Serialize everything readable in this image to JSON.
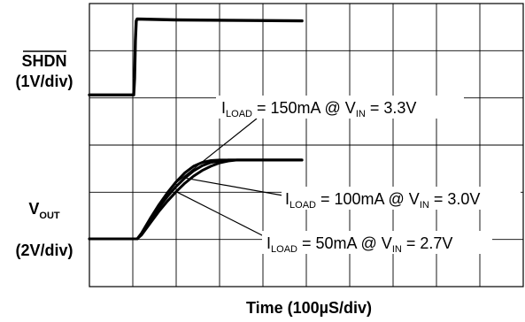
{
  "chart_data": {
    "type": "line",
    "title": "",
    "xlabel": "Time (100µS/div)",
    "x_divisions": 10,
    "y_divisions": 6,
    "grid": true,
    "channels": [
      {
        "name_main": "SHDN",
        "name_sub": "",
        "overline": true,
        "scale": "(1V/div)"
      },
      {
        "name_main": "V",
        "name_sub": "OUT",
        "overline": false,
        "scale": "(2V/div)"
      }
    ],
    "x_unit": "div",
    "series": [
      {
        "name": "SHDN",
        "x": [
          0,
          1.02,
          1.04,
          1.06,
          1.08,
          1.1,
          2.0,
          4.9
        ],
        "y": [
          3.05,
          3.05,
          3.4,
          4.2,
          4.62,
          4.66,
          4.64,
          4.62
        ]
      },
      {
        "name": "ILOAD = 150mA @ VIN = 3.3V",
        "x": [
          0,
          1.1,
          1.2,
          1.4,
          1.6,
          1.8,
          2.0,
          2.2,
          2.4,
          2.6,
          2.8,
          3.0,
          4.9
        ],
        "y": [
          0.0,
          0.0,
          0.12,
          0.43,
          0.72,
          0.98,
          1.21,
          1.4,
          1.54,
          1.62,
          1.66,
          1.67,
          1.67
        ]
      },
      {
        "name": "ILOAD = 100mA @ VIN = 3.0V",
        "x": [
          0,
          1.1,
          1.2,
          1.4,
          1.6,
          1.8,
          2.0,
          2.2,
          2.4,
          2.6,
          2.8,
          3.0,
          3.2,
          4.9
        ],
        "y": [
          0.0,
          0.0,
          0.1,
          0.39,
          0.66,
          0.9,
          1.11,
          1.29,
          1.44,
          1.55,
          1.62,
          1.65,
          1.67,
          1.67
        ]
      },
      {
        "name": "ILOAD = 50mA @ VIN = 2.7V",
        "x": [
          0,
          1.1,
          1.2,
          1.4,
          1.6,
          1.8,
          2.0,
          2.2,
          2.4,
          2.6,
          2.8,
          3.0,
          3.2,
          3.4,
          4.9
        ],
        "y": [
          0.0,
          0.0,
          0.08,
          0.33,
          0.58,
          0.8,
          1.0,
          1.18,
          1.33,
          1.45,
          1.54,
          1.61,
          1.65,
          1.67,
          1.67
        ]
      }
    ],
    "annotations": [
      {
        "label_main": "I",
        "label_sub": "LOAD",
        "label_mid": " = 150mA @ V",
        "label_sub2": "IN",
        "label_end": " = 3.3V",
        "points_to_series": 1
      },
      {
        "label_main": "I",
        "label_sub": "LOAD",
        "label_mid": " = 100mA @ V",
        "label_sub2": "IN",
        "label_end": " = 3.0V",
        "points_to_series": 2
      },
      {
        "label_main": "I",
        "label_sub": "LOAD",
        "label_mid": " = 50mA @ V",
        "label_sub2": "IN",
        "label_end": " = 2.7V",
        "points_to_series": 3
      }
    ]
  }
}
